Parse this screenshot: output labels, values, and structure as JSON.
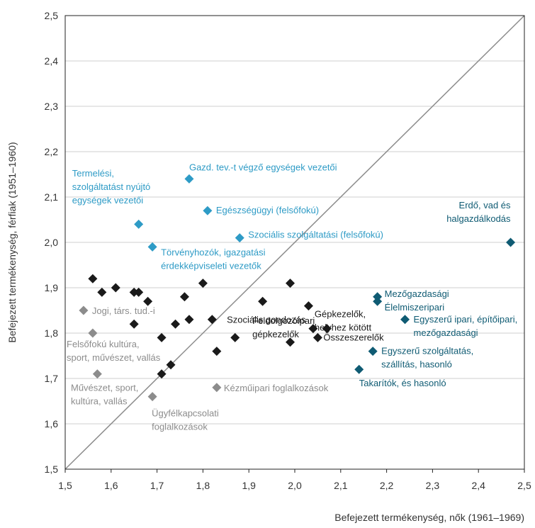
{
  "chart_data": {
    "type": "scatter",
    "xlabel": "Befejezett termékenység, nők (1961–1969)",
    "ylabel": "Befejezett termékenység, férfiak (1951–1960)",
    "xlim": [
      1.5,
      2.5
    ],
    "ylim": [
      1.5,
      2.5
    ],
    "x_ticks": [
      "1,5",
      "1,6",
      "1,7",
      "1,8",
      "1,9",
      "2,0",
      "2,1",
      "2,2",
      "2,3",
      "2,4",
      "2,5"
    ],
    "y_ticks": [
      "1,5",
      "1,6",
      "1,7",
      "1,8",
      "1,9",
      "2,0",
      "2,1",
      "2,2",
      "2,3",
      "2,4",
      "2,5"
    ],
    "grid": "horizontal",
    "diagonal_line": true,
    "colors": {
      "light_blue": "#2e9bc6",
      "dark_teal": "#0f5b73",
      "gray": "#8c8c8c",
      "black": "#1a1a1a",
      "grid": "#cfcfcf",
      "diagonal": "#8c8c8c"
    },
    "points": [
      {
        "x": 1.77,
        "y": 2.14,
        "color": "light_blue"
      },
      {
        "x": 1.66,
        "y": 2.04,
        "color": "light_blue"
      },
      {
        "x": 1.81,
        "y": 2.07,
        "color": "light_blue"
      },
      {
        "x": 1.88,
        "y": 2.01,
        "color": "light_blue"
      },
      {
        "x": 1.69,
        "y": 1.99,
        "color": "light_blue"
      },
      {
        "x": 2.47,
        "y": 2.0,
        "color": "dark_teal"
      },
      {
        "x": 2.18,
        "y": 1.88,
        "color": "dark_teal"
      },
      {
        "x": 2.18,
        "y": 1.87,
        "color": "dark_teal"
      },
      {
        "x": 2.24,
        "y": 1.83,
        "color": "dark_teal"
      },
      {
        "x": 2.17,
        "y": 1.76,
        "color": "dark_teal"
      },
      {
        "x": 2.14,
        "y": 1.72,
        "color": "dark_teal"
      },
      {
        "x": 1.54,
        "y": 1.85,
        "color": "gray"
      },
      {
        "x": 1.56,
        "y": 1.8,
        "color": "gray"
      },
      {
        "x": 1.57,
        "y": 1.71,
        "color": "gray"
      },
      {
        "x": 1.69,
        "y": 1.66,
        "color": "gray"
      },
      {
        "x": 1.83,
        "y": 1.68,
        "color": "gray"
      },
      {
        "x": 1.56,
        "y": 1.92,
        "color": "black"
      },
      {
        "x": 1.58,
        "y": 1.89,
        "color": "black"
      },
      {
        "x": 1.61,
        "y": 1.9,
        "color": "black"
      },
      {
        "x": 1.65,
        "y": 1.89,
        "color": "black"
      },
      {
        "x": 1.66,
        "y": 1.89,
        "color": "black"
      },
      {
        "x": 1.68,
        "y": 1.87,
        "color": "black"
      },
      {
        "x": 1.65,
        "y": 1.82,
        "color": "black"
      },
      {
        "x": 1.71,
        "y": 1.79,
        "color": "black"
      },
      {
        "x": 1.74,
        "y": 1.82,
        "color": "black"
      },
      {
        "x": 1.76,
        "y": 1.88,
        "color": "black"
      },
      {
        "x": 1.77,
        "y": 1.83,
        "color": "black"
      },
      {
        "x": 1.8,
        "y": 1.91,
        "color": "black"
      },
      {
        "x": 1.82,
        "y": 1.83,
        "color": "black"
      },
      {
        "x": 1.73,
        "y": 1.73,
        "color": "black"
      },
      {
        "x": 1.71,
        "y": 1.71,
        "color": "black"
      },
      {
        "x": 1.83,
        "y": 1.76,
        "color": "black"
      },
      {
        "x": 1.87,
        "y": 1.79,
        "color": "black"
      },
      {
        "x": 1.93,
        "y": 1.87,
        "color": "black"
      },
      {
        "x": 1.99,
        "y": 1.91,
        "color": "black"
      },
      {
        "x": 2.03,
        "y": 1.86,
        "color": "black"
      },
      {
        "x": 2.04,
        "y": 1.81,
        "color": "black"
      },
      {
        "x": 2.07,
        "y": 1.81,
        "color": "black"
      },
      {
        "x": 2.05,
        "y": 1.79,
        "color": "black"
      },
      {
        "x": 1.99,
        "y": 1.78,
        "color": "black"
      }
    ],
    "annotations": [
      {
        "lines": [
          "Gazd. tev.-t végző egységek vezetői"
        ],
        "x": 1.77,
        "y": 2.14,
        "color": "light_blue",
        "anchor": "start",
        "dx": 0,
        "dy": -12
      },
      {
        "lines": [
          "Termelési,",
          "szolgáltatást nyújtó",
          "egységek vezetői"
        ],
        "x": 1.515,
        "y": 2.145,
        "color": "light_blue",
        "anchor": "start",
        "dx": 0,
        "dy": 0
      },
      {
        "lines": [
          "Egészségügyi (felsőfokú)"
        ],
        "x": 1.81,
        "y": 2.07,
        "color": "light_blue",
        "anchor": "start",
        "dx": 12,
        "dy": 4
      },
      {
        "lines": [
          "Szociális szolgáltatási (felsőfokú)"
        ],
        "x": 1.88,
        "y": 2.01,
        "color": "light_blue",
        "anchor": "start",
        "dx": 12,
        "dy": 0
      },
      {
        "lines": [
          "Törvényhozók, igazgatási",
          "érdekképviseleti vezetők"
        ],
        "x": 1.69,
        "y": 1.99,
        "color": "light_blue",
        "anchor": "start",
        "dx": 12,
        "dy": 12
      },
      {
        "lines": [
          "Erdő, vad és",
          "halgazdálkodás"
        ],
        "x": 2.47,
        "y": 2.0,
        "color": "dark_teal",
        "anchor": "end",
        "dx": 0,
        "dy": -48
      },
      {
        "lines": [
          "Mezőgazdasági",
          "Élelmiszeripari"
        ],
        "x": 2.18,
        "y": 1.88,
        "color": "dark_teal",
        "anchor": "start",
        "dx": 10,
        "dy": 0
      },
      {
        "lines": [
          "Egyszerű ipari, építőipari,",
          "mezőgazdasági"
        ],
        "x": 2.24,
        "y": 1.83,
        "color": "dark_teal",
        "anchor": "start",
        "dx": 12,
        "dy": 4
      },
      {
        "lines": [
          "Egyszerű szolgáltatás,",
          "szállítás, hasonló"
        ],
        "x": 2.17,
        "y": 1.76,
        "color": "dark_teal",
        "anchor": "start",
        "dx": 12,
        "dy": 4
      },
      {
        "lines": [
          "Takarítók, és hasonló"
        ],
        "x": 2.14,
        "y": 1.72,
        "color": "dark_teal",
        "anchor": "start",
        "dx": 0,
        "dy": 24
      },
      {
        "lines": [
          "Jogi, társ. tud.-i"
        ],
        "x": 1.54,
        "y": 1.85,
        "color": "gray",
        "anchor": "start",
        "dx": 12,
        "dy": 5
      },
      {
        "lines": [
          "Felsőfokú kultúra,",
          "sport, művészet, vallás"
        ],
        "x": 1.5,
        "y": 1.8,
        "color": "gray",
        "anchor": "start",
        "dx": 2,
        "dy": 20
      },
      {
        "lines": [
          "Művészet, sport,",
          "kultúra, vallás"
        ],
        "x": 1.5,
        "y": 1.71,
        "color": "gray",
        "anchor": "start",
        "dx": 8,
        "dy": 24
      },
      {
        "lines": [
          "Ügyfélkapcsolati",
          "foglalkozások"
        ],
        "x": 1.69,
        "y": 1.66,
        "color": "gray",
        "anchor": "start",
        "dx": -1,
        "dy": 28
      },
      {
        "lines": [
          "Kézműipari foglalkozások"
        ],
        "x": 1.83,
        "y": 1.68,
        "color": "gray",
        "anchor": "start",
        "dx": 10,
        "dy": 5
      },
      {
        "lines": [
          "Szociális gondozás"
        ],
        "x": 2.03,
        "y": 1.86,
        "color": "black",
        "anchor": "end",
        "dx": -4,
        "dy": 24
      },
      {
        "lines": [
          "Feldolgozóipari",
          "gépkezelők"
        ],
        "x": 1.92,
        "y": 1.82,
        "color": "black",
        "anchor": "start",
        "dx": -8,
        "dy": 0
      },
      {
        "lines": [
          "Gépkezelők,",
          "helyhez kötött"
        ],
        "x": 2.04,
        "y": 1.81,
        "color": "black",
        "anchor": "start",
        "dx": 2,
        "dy": -16
      },
      {
        "lines": [
          "Összeszerelők"
        ],
        "x": 2.05,
        "y": 1.79,
        "color": "black",
        "anchor": "start",
        "dx": 8,
        "dy": 4
      }
    ]
  }
}
